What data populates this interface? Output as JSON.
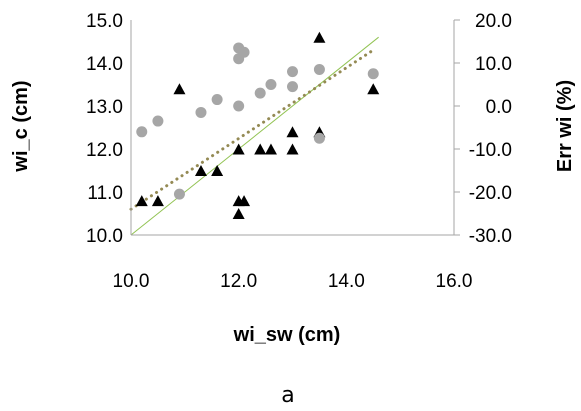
{
  "chart_data": {
    "type": "scatter",
    "xlabel": "wi_sw (cm)",
    "ylabel": "wi_c (cm)",
    "y2label": "Err wi (%)",
    "caption": "a",
    "xlim": [
      10.0,
      16.0
    ],
    "ylim": [
      10.0,
      15.0
    ],
    "y2lim": [
      -30.0,
      20.0
    ],
    "x_ticks": [
      "10.0",
      "12.0",
      "14.0",
      "16.0"
    ],
    "y_ticks": [
      "10.0",
      "11.0",
      "12.0",
      "13.0",
      "14.0",
      "15.0"
    ],
    "y2_ticks": [
      "-30.0",
      "-20.0",
      "-10.0",
      "0.0",
      "10.0",
      "20.0"
    ],
    "grid": false,
    "legend": "none",
    "colors": {
      "triangles": "#000000",
      "circles": "#a6a6a6",
      "identity_line": "#92c353",
      "trend_line": "#948a54"
    },
    "series": [
      {
        "axis": "left",
        "marker": "triangle",
        "points": [
          {
            "x": 10.2,
            "y": 10.8
          },
          {
            "x": 10.5,
            "y": 10.8
          },
          {
            "x": 10.9,
            "y": 13.4
          },
          {
            "x": 11.3,
            "y": 11.5
          },
          {
            "x": 11.6,
            "y": 11.5
          },
          {
            "x": 12.0,
            "y": 12.0
          },
          {
            "x": 12.0,
            "y": 10.8
          },
          {
            "x": 12.0,
            "y": 10.5
          },
          {
            "x": 12.1,
            "y": 10.8
          },
          {
            "x": 12.4,
            "y": 12.0
          },
          {
            "x": 12.6,
            "y": 12.0
          },
          {
            "x": 13.0,
            "y": 12.4
          },
          {
            "x": 13.0,
            "y": 12.0
          },
          {
            "x": 13.5,
            "y": 14.6
          },
          {
            "x": 13.5,
            "y": 12.4
          },
          {
            "x": 14.5,
            "y": 13.4
          }
        ]
      },
      {
        "axis": "right",
        "marker": "circle",
        "points": [
          {
            "x": 10.2,
            "y": -6.0
          },
          {
            "x": 10.5,
            "y": -3.5
          },
          {
            "x": 10.9,
            "y": -20.5
          },
          {
            "x": 11.3,
            "y": -1.5
          },
          {
            "x": 11.6,
            "y": 1.5
          },
          {
            "x": 12.0,
            "y": 13.5
          },
          {
            "x": 12.0,
            "y": 11.0
          },
          {
            "x": 12.0,
            "y": 0.0
          },
          {
            "x": 12.1,
            "y": 12.5
          },
          {
            "x": 12.4,
            "y": 3.0
          },
          {
            "x": 12.6,
            "y": 5.0
          },
          {
            "x": 13.0,
            "y": 8.0
          },
          {
            "x": 13.0,
            "y": 4.5
          },
          {
            "x": 13.5,
            "y": 8.5
          },
          {
            "x": 13.5,
            "y": -7.5
          },
          {
            "x": 14.5,
            "y": 7.5
          }
        ]
      }
    ],
    "lines": [
      {
        "style": "solid",
        "axis": "left",
        "from": {
          "x": 10.0,
          "y": 10.0
        },
        "to": {
          "x": 14.6,
          "y": 14.6
        }
      },
      {
        "style": "dotted",
        "axis": "left",
        "from": {
          "x": 10.0,
          "y": 10.6
        },
        "to": {
          "x": 14.5,
          "y": 14.3
        }
      }
    ]
  }
}
